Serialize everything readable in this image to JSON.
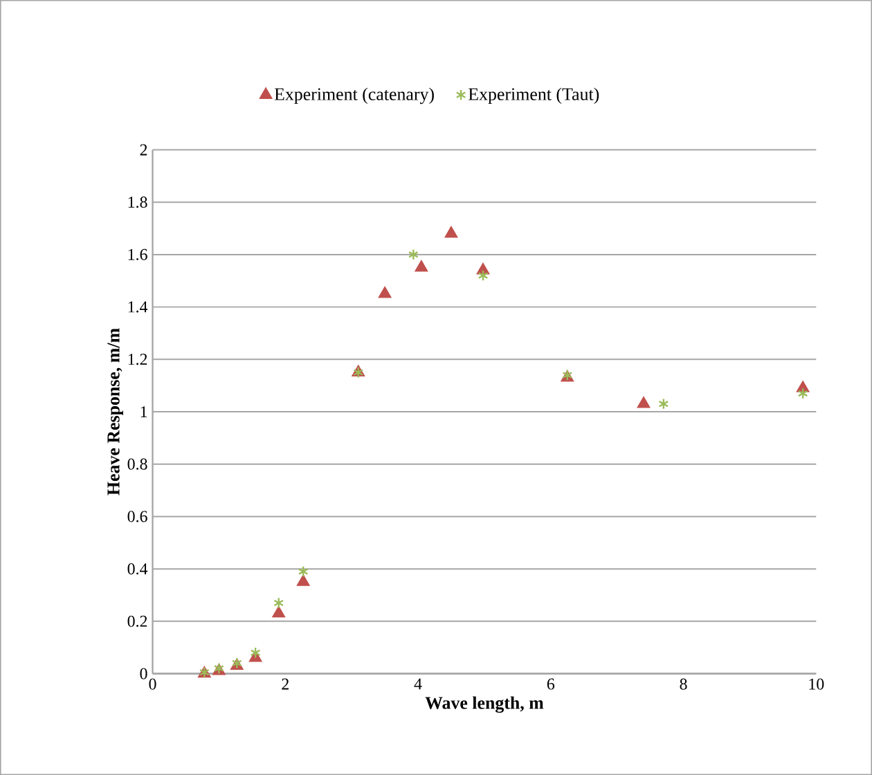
{
  "chart_data": {
    "type": "scatter",
    "xlabel": "Wave length, m",
    "ylabel": "Heave Response, m/m",
    "xlim": [
      0,
      10
    ],
    "ylim": [
      0,
      2
    ],
    "xticks": [
      0,
      2,
      4,
      6,
      8,
      10
    ],
    "yticks": [
      0,
      0.2,
      0.4,
      0.6,
      0.8,
      1,
      1.2,
      1.4,
      1.6,
      1.8,
      2
    ],
    "grid": "y",
    "legend": "top",
    "series": [
      {
        "name": "Experiment (catenary)",
        "color": "#c0504d",
        "marker": "triangle",
        "x": [
          0.78,
          1.0,
          1.27,
          1.55,
          1.9,
          2.27,
          3.1,
          3.5,
          4.05,
          4.5,
          4.98,
          6.25,
          7.4,
          9.8
        ],
        "values": [
          0.0,
          0.01,
          0.03,
          0.06,
          0.23,
          0.35,
          1.15,
          1.45,
          1.55,
          1.68,
          1.54,
          1.13,
          1.03,
          1.09
        ]
      },
      {
        "name": "Experiment (Taut)",
        "color": "#9bbb59",
        "marker": "cross",
        "x": [
          0.78,
          1.0,
          1.27,
          1.55,
          1.9,
          2.27,
          3.1,
          3.93,
          4.98,
          6.25,
          7.7,
          9.8
        ],
        "values": [
          0.005,
          0.02,
          0.04,
          0.08,
          0.27,
          0.39,
          1.15,
          1.6,
          1.52,
          1.14,
          1.03,
          1.07
        ]
      }
    ]
  }
}
